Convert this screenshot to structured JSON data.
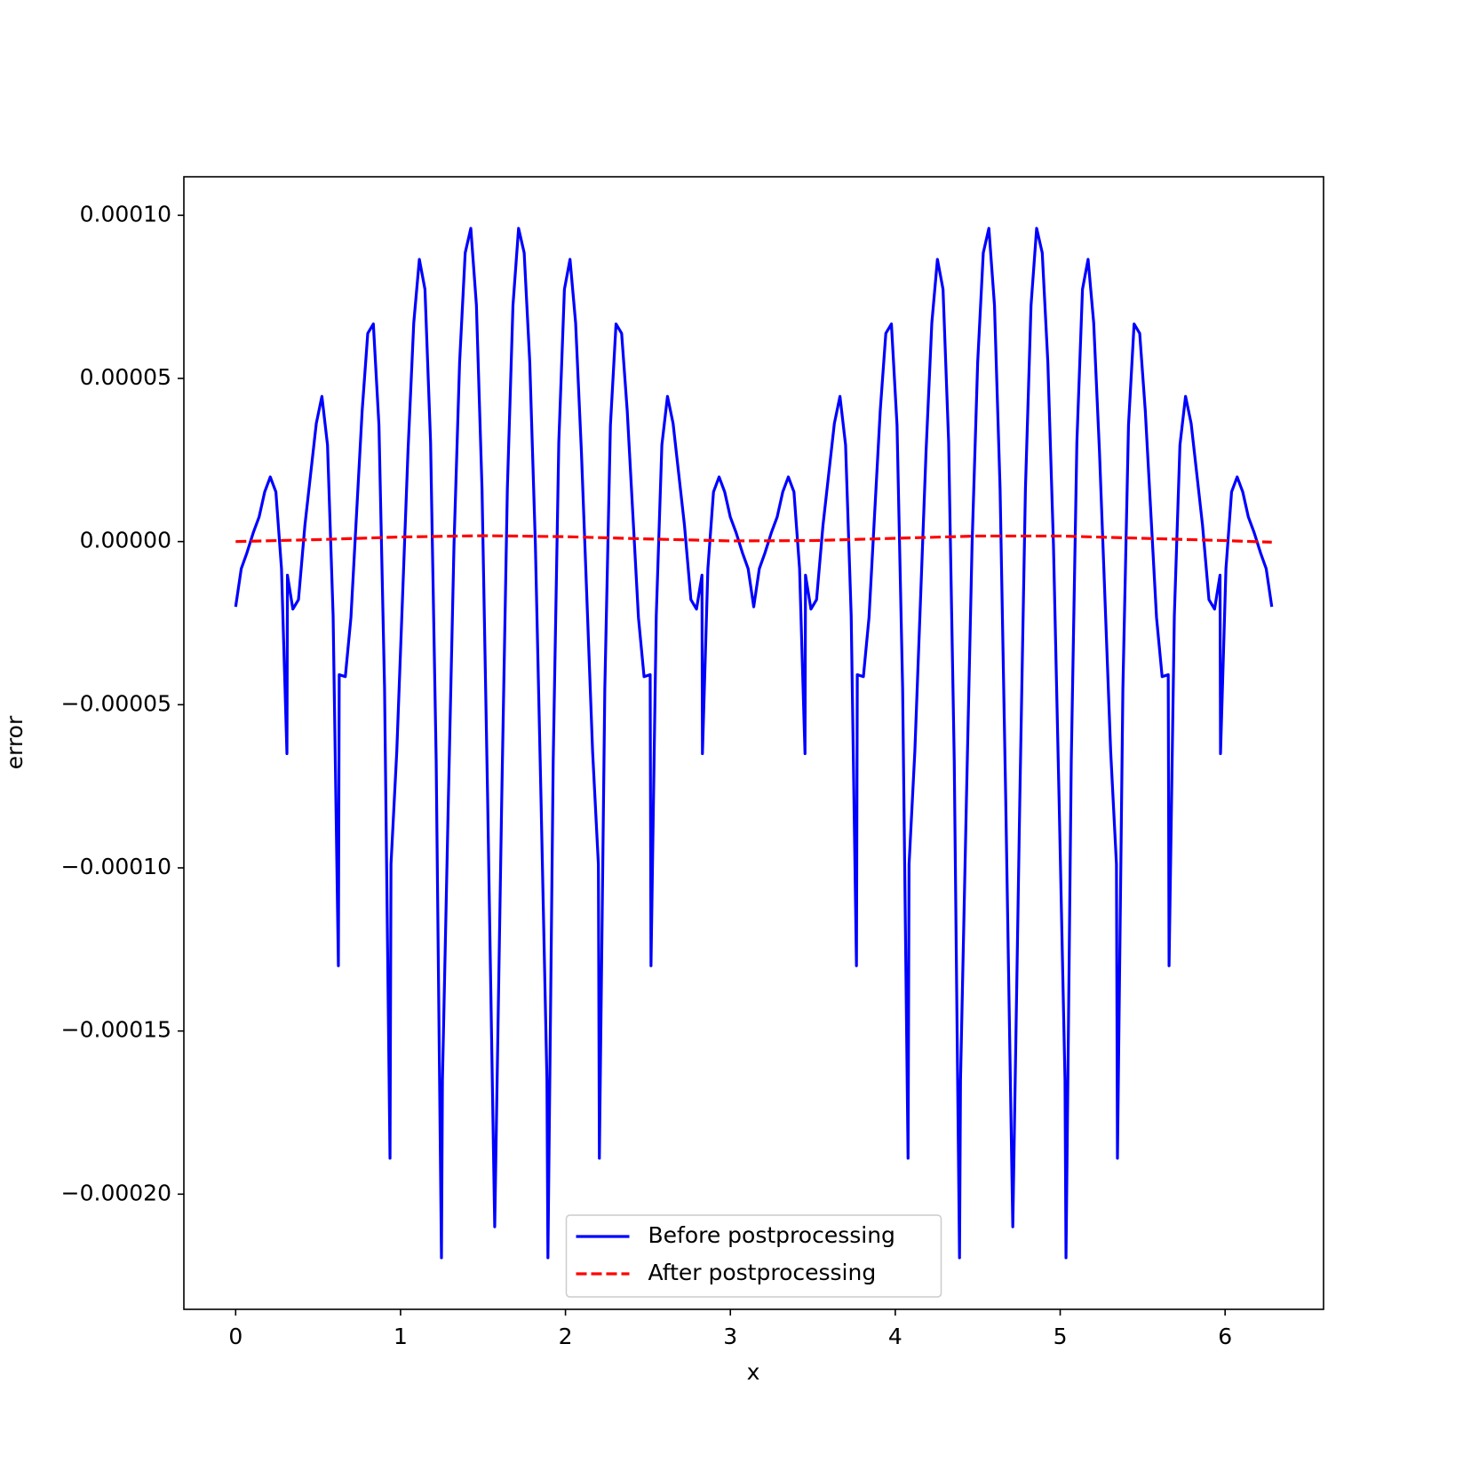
{
  "chart_data": {
    "type": "line",
    "xlabel": "x",
    "ylabel": "error",
    "xlim": [
      -0.314,
      6.597
    ],
    "ylim": [
      -0.0002353,
      0.0001118
    ],
    "xticks": [
      0,
      1,
      2,
      3,
      4,
      5,
      6
    ],
    "yticks": [
      {
        "value": 0.0001,
        "label": "0.00010"
      },
      {
        "value": 5e-05,
        "label": "0.00005"
      },
      {
        "value": 0,
        "label": "0.00000"
      },
      {
        "value": -5e-05,
        "label": "−0.00005"
      },
      {
        "value": -0.0001,
        "label": "−0.00010"
      },
      {
        "value": -0.00015,
        "label": "−0.00015"
      },
      {
        "value": -0.0002,
        "label": "−0.00020"
      }
    ],
    "grid": false,
    "legend": "lower center",
    "series": [
      {
        "name": "Before postprocessing",
        "color": "#0000ff",
        "linestyle": "solid",
        "x": [
          0,
          0.034,
          0.068,
          0.108,
          0.142,
          0.176,
          0.21,
          0.244,
          0.278,
          0.311,
          0.314,
          0.347,
          0.381,
          0.42,
          0.489,
          0.523,
          0.557,
          0.591,
          0.623,
          0.628,
          0.665,
          0.699,
          0.767,
          0.801,
          0.835,
          0.869,
          0.903,
          0.936,
          0.942,
          0.977,
          1.045,
          1.08,
          1.114,
          1.148,
          1.182,
          1.216,
          1.248,
          1.254,
          1.29,
          1.324,
          1.358,
          1.392,
          1.426,
          1.46,
          1.494,
          1.528,
          1.571,
          1.6136,
          1.6476,
          1.6816,
          1.7156,
          1.7496,
          1.7836,
          1.8176,
          1.8516,
          1.8876,
          1.8936,
          1.9256,
          1.9596,
          1.9936,
          2.0276,
          2.0616,
          2.0966,
          2.1646,
          2.1996,
          2.2056,
          2.2386,
          2.2726,
          2.3066,
          2.3406,
          2.3746,
          2.4426,
          2.4766,
          2.5136,
          2.5186,
          2.5506,
          2.5846,
          2.6186,
          2.6526,
          2.7216,
          2.7606,
          2.7946,
          2.8276,
          2.8306,
          2.8636,
          2.8976,
          2.9316,
          2.9656,
          2.9996,
          3.0336,
          3.0736,
          3.1076,
          3.1416,
          3.1756,
          3.2096,
          3.2496,
          3.2836,
          3.3176,
          3.3516,
          3.3856,
          3.4196,
          3.4526,
          3.4556,
          3.4886,
          3.5226,
          3.5616,
          3.6306,
          3.6646,
          3.6986,
          3.7326,
          3.7646,
          3.7696,
          3.8066,
          3.8406,
          3.9086,
          3.9426,
          3.9766,
          4.0106,
          4.0446,
          4.0776,
          4.0836,
          4.1186,
          4.1866,
          4.2216,
          4.2556,
          4.2896,
          4.3236,
          4.3576,
          4.3896,
          4.3956,
          4.4316,
          4.4656,
          4.4996,
          4.5336,
          4.5676,
          4.6016,
          4.6356,
          4.6696,
          4.7126,
          4.7552,
          4.7892,
          4.8232,
          4.8572,
          4.8912,
          4.9252,
          4.9592,
          4.9932,
          5.0292,
          5.0352,
          5.0672,
          5.1012,
          5.1352,
          5.1692,
          5.2032,
          5.2382,
          5.3062,
          5.3412,
          5.3472,
          5.3802,
          5.4142,
          5.4482,
          5.4822,
          5.5162,
          5.5842,
          5.6182,
          5.6552,
          5.6602,
          5.6922,
          5.7262,
          5.7602,
          5.7942,
          5.8632,
          5.9022,
          5.9362,
          5.9692,
          5.9722,
          6.0052,
          6.0392,
          6.0732,
          6.1072,
          6.1412,
          6.1752,
          6.2152,
          6.2492,
          6.2832
        ],
        "values": [
          -2e-05,
          -8.3e-06,
          -3.5e-06,
          2.9e-06,
          7.5e-06,
          1.52e-05,
          1.98e-05,
          1.52e-05,
          -8.3e-06,
          -6.5e-05,
          -1.03e-05,
          -2.07e-05,
          -1.78e-05,
          5e-06,
          3.62e-05,
          4.45e-05,
          2.96e-05,
          -2.27e-05,
          -0.00013,
          -4.08e-05,
          -4.14e-05,
          -2.33e-05,
          4e-05,
          6.38e-05,
          6.67e-05,
          3.56e-05,
          -4.51e-05,
          -0.000189,
          -9.89e-05,
          -6.44e-05,
          2.76e-05,
          6.7e-05,
          8.65e-05,
          7.73e-05,
          3.05e-05,
          -6.72e-05,
          -0.0002195,
          -0.000165,
          -7.87e-05,
          -1.1e-06,
          5.49e-05,
          8.85e-05,
          9.6e-05,
          7.24e-05,
          1.61e-05,
          -7.87e-05,
          -0.00021,
          -7.87e-05,
          1.61e-05,
          7.24e-05,
          9.6e-05,
          8.85e-05,
          5.49e-05,
          -1.1e-06,
          -7.87e-05,
          -0.000165,
          -0.0002195,
          -6.72e-05,
          3.05e-05,
          7.73e-05,
          8.65e-05,
          6.7e-05,
          2.76e-05,
          -6.44e-05,
          -9.89e-05,
          -0.000189,
          -4.51e-05,
          3.56e-05,
          6.67e-05,
          6.38e-05,
          4e-05,
          -2.33e-05,
          -4.14e-05,
          -4.08e-05,
          -0.00013,
          -2.27e-05,
          2.96e-05,
          4.45e-05,
          3.62e-05,
          5e-06,
          -1.78e-05,
          -2.07e-05,
          -1.03e-05,
          -6.5e-05,
          -8.3e-06,
          1.52e-05,
          1.98e-05,
          1.52e-05,
          7.5e-06,
          2.9e-06,
          -3.5e-06,
          -8.3e-06,
          -2e-05,
          -8.3e-06,
          -3.5e-06,
          2.9e-06,
          7.5e-06,
          1.52e-05,
          1.98e-05,
          1.52e-05,
          -8.3e-06,
          -6.5e-05,
          -1.03e-05,
          -2.07e-05,
          -1.78e-05,
          5e-06,
          3.62e-05,
          4.45e-05,
          2.96e-05,
          -2.27e-05,
          -0.00013,
          -4.08e-05,
          -4.14e-05,
          -2.33e-05,
          4e-05,
          6.38e-05,
          6.67e-05,
          3.56e-05,
          -4.51e-05,
          -0.000189,
          -9.89e-05,
          -6.44e-05,
          2.76e-05,
          6.7e-05,
          8.65e-05,
          7.73e-05,
          3.05e-05,
          -6.72e-05,
          -0.0002195,
          -0.000165,
          -7.87e-05,
          -1.1e-06,
          5.49e-05,
          8.85e-05,
          9.6e-05,
          7.24e-05,
          1.61e-05,
          -7.87e-05,
          -0.00021,
          -7.87e-05,
          1.61e-05,
          7.24e-05,
          9.6e-05,
          8.85e-05,
          5.49e-05,
          -1.1e-06,
          -7.87e-05,
          -0.000165,
          -0.0002195,
          -6.72e-05,
          3.05e-05,
          7.73e-05,
          8.65e-05,
          6.7e-05,
          2.76e-05,
          -6.44e-05,
          -9.89e-05,
          -0.000189,
          -4.51e-05,
          3.56e-05,
          6.67e-05,
          6.38e-05,
          4e-05,
          -2.33e-05,
          -4.14e-05,
          -4.08e-05,
          -0.00013,
          -2.27e-05,
          2.96e-05,
          4.45e-05,
          3.62e-05,
          5e-06,
          -1.78e-05,
          -2.07e-05,
          -1.03e-05,
          -6.5e-05,
          -8.3e-06,
          1.52e-05,
          1.98e-05,
          1.52e-05,
          7.5e-06,
          2.9e-06,
          -3.5e-06,
          -8.3e-06,
          -2e-05
        ]
      },
      {
        "name": "After postprocessing",
        "color": "#ff0000",
        "linestyle": "dashed",
        "x": [
          0,
          0.5,
          1,
          1.5,
          2,
          2.5,
          3,
          3.5,
          4,
          4.5,
          5,
          5.5,
          6,
          6.2832
        ],
        "values": [
          0,
          6e-07,
          1.4e-06,
          1.8e-06,
          1.5e-06,
          8e-07,
          2e-07,
          3e-07,
          1e-06,
          1.7e-06,
          1.7e-06,
          1e-06,
          3e-07,
          -2e-07
        ]
      }
    ]
  }
}
